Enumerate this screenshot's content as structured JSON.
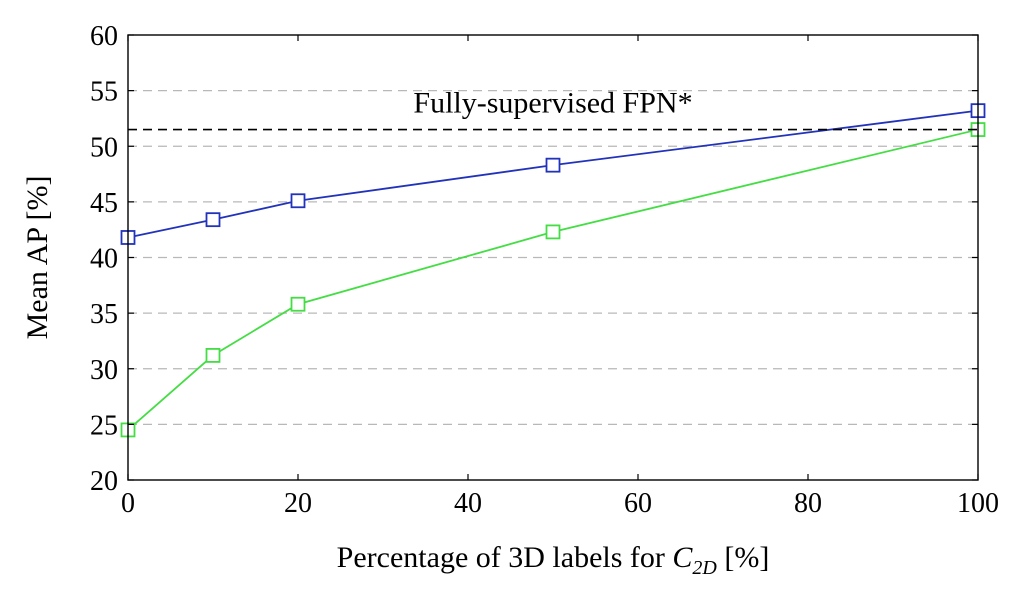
{
  "chart_data": {
    "type": "line",
    "xlabel": {
      "prefix": "Percentage of 3D labels for ",
      "symbol": "C",
      "subscript": "2D",
      "suffix": " [%]"
    },
    "ylabel": "Mean AP [%]",
    "xlim": [
      0,
      100
    ],
    "ylim": [
      20,
      60
    ],
    "xticks": [
      0,
      20,
      40,
      60,
      80,
      100
    ],
    "yticks": [
      20,
      25,
      30,
      35,
      40,
      45,
      50,
      55,
      60
    ],
    "grid": "horizontal-dashed",
    "series": [
      {
        "color": "#2233bb",
        "marker": "square",
        "x": [
          0,
          10,
          20,
          50,
          100
        ],
        "y": [
          41.8,
          43.4,
          45.1,
          48.3,
          53.2
        ]
      },
      {
        "color": "#44dd44",
        "marker": "square",
        "x": [
          0,
          10,
          20,
          50,
          100
        ],
        "y": [
          24.5,
          31.2,
          35.8,
          42.3,
          51.5
        ]
      }
    ],
    "reference_line": {
      "label": "Fully-supervised FPN*",
      "y": 51.5,
      "style": "dashed",
      "color": "#000000"
    }
  }
}
